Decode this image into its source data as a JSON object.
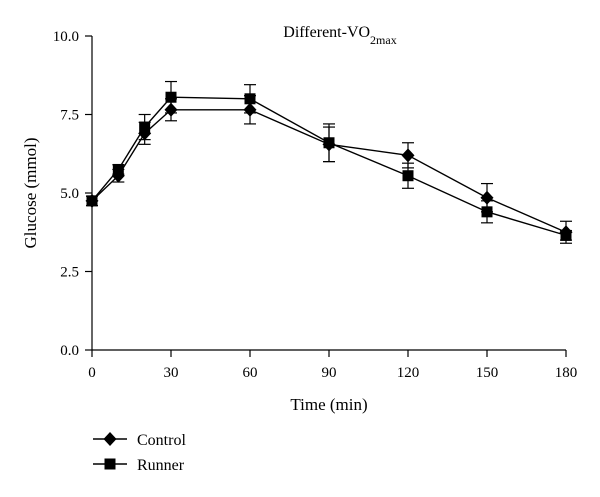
{
  "chart_data": {
    "type": "line",
    "title": "Different-VO",
    "title_subscript": "2max",
    "xlabel": "Time (min)",
    "ylabel": "Glucose (mmol)",
    "x_ticks": [
      "0",
      "30",
      "60",
      "90",
      "120",
      "150",
      "180"
    ],
    "y_ticks": [
      "0.0",
      "2.5",
      "5.0",
      "7.5",
      "10.0"
    ],
    "xlim": [
      0,
      180
    ],
    "ylim": [
      0,
      10
    ],
    "grid": false,
    "legend_position": "bottom-left",
    "x": [
      0,
      10,
      20,
      30,
      60,
      90,
      120,
      150,
      180
    ],
    "series": [
      {
        "name": "Control",
        "marker": "diamond",
        "values": [
          4.75,
          5.55,
          6.9,
          7.65,
          7.65,
          6.55,
          6.2,
          4.85,
          3.75
        ],
        "error": [
          0.15,
          0.2,
          0.35,
          0.35,
          0.45,
          0.55,
          0.4,
          0.45,
          0.35
        ]
      },
      {
        "name": "Runner",
        "marker": "square",
        "values": [
          4.75,
          5.75,
          7.1,
          8.05,
          8.0,
          6.6,
          5.55,
          4.4,
          3.65
        ],
        "error": [
          0.15,
          0.15,
          0.4,
          0.5,
          0.45,
          0.6,
          0.4,
          0.35,
          0.15
        ]
      }
    ]
  }
}
